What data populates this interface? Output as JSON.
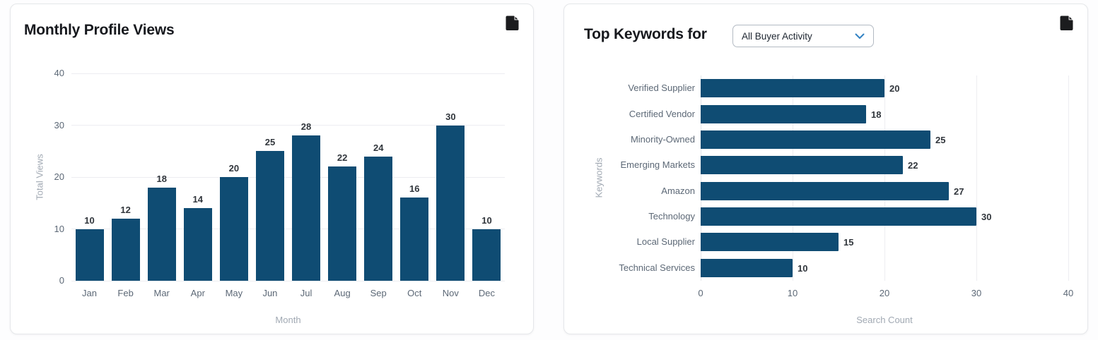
{
  "panels": {
    "left": {
      "icon": "document-icon"
    },
    "right": {
      "icon": "document-icon",
      "dropdown": {
        "selected": "All Buyer Activity"
      }
    }
  },
  "colors": {
    "bar": "#0f4c73",
    "grid": "#ededf1",
    "tick": "#5c6876",
    "axis_title": "#a1a9b3",
    "value_label": "#31363c",
    "card_border": "#e5e7ea",
    "title": "#17191e",
    "chevron": "#3282c3"
  },
  "chart_data": [
    {
      "type": "bar",
      "orientation": "vertical",
      "title": "Monthly Profile Views",
      "categories": [
        "Jan",
        "Feb",
        "Mar",
        "Apr",
        "May",
        "Jun",
        "Jul",
        "Aug",
        "Sep",
        "Oct",
        "Nov",
        "Dec"
      ],
      "values": [
        10,
        12,
        18,
        14,
        20,
        25,
        28,
        22,
        24,
        16,
        30,
        10
      ],
      "xlabel": "Month",
      "ylabel": "Total Views",
      "ylim": [
        0,
        40
      ],
      "yticks": [
        0,
        10,
        20,
        30,
        40
      ],
      "grid": true,
      "legend": false
    },
    {
      "type": "bar",
      "orientation": "horizontal",
      "title": "Top Keywords for",
      "categories": [
        "Verified Supplier",
        "Certified Vendor",
        "Minority-Owned",
        "Emerging Markets",
        "Amazon",
        "Technology",
        "Local Supplier",
        "Technical Services"
      ],
      "values": [
        20,
        18,
        25,
        22,
        27,
        30,
        15,
        10
      ],
      "xlabel": "Search Count",
      "ylabel": "Keywords",
      "xlim": [
        0,
        40
      ],
      "xticks": [
        0,
        10,
        20,
        30,
        40
      ],
      "grid": true,
      "legend": false
    }
  ]
}
